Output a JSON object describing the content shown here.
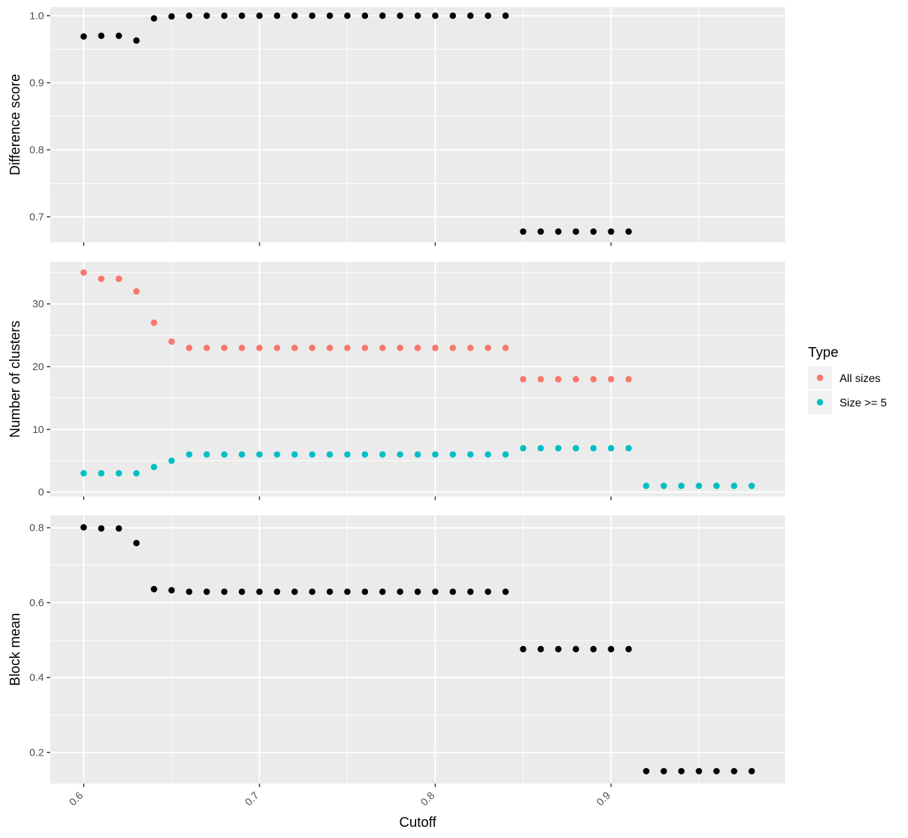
{
  "chart_data": {
    "type": "scatter",
    "xlabel": "Cutoff",
    "xlim": [
      0.581,
      0.999
    ],
    "xticks": [
      0.6,
      0.7,
      0.8,
      0.9
    ],
    "x_tick_labels": [
      "0.6",
      "0.7",
      "0.8",
      "0.9"
    ],
    "panels": [
      {
        "ylabel": "Difference score",
        "ylim": [
          0.662,
          1.013
        ],
        "yticks": [
          0.7,
          0.8,
          0.9,
          1.0
        ],
        "y_tick_labels": [
          "0.7",
          "0.8",
          "0.9",
          "1.0"
        ],
        "y_minor": [
          0.75,
          0.85,
          0.95
        ],
        "series": [
          {
            "color": "#000000",
            "x": [
              0.6,
              0.61,
              0.62,
              0.63,
              0.64,
              0.65,
              0.66,
              0.67,
              0.68,
              0.69,
              0.7,
              0.71,
              0.72,
              0.73,
              0.74,
              0.75,
              0.76,
              0.77,
              0.78,
              0.79,
              0.8,
              0.81,
              0.82,
              0.83,
              0.84,
              0.85,
              0.86,
              0.87,
              0.88,
              0.89,
              0.9,
              0.91
            ],
            "y": [
              0.969,
              0.97,
              0.97,
              0.963,
              0.996,
              0.999,
              1.0,
              1.0,
              1.0,
              1.0,
              1.0,
              1.0,
              1.0,
              1.0,
              1.0,
              1.0,
              1.0,
              1.0,
              1.0,
              1.0,
              1.0,
              1.0,
              1.0,
              1.0,
              1.0,
              0.678,
              0.678,
              0.678,
              0.678,
              0.678,
              0.678,
              0.678
            ]
          }
        ]
      },
      {
        "ylabel": "Number of clusters",
        "ylim": [
          -0.7,
          36.7
        ],
        "yticks": [
          0,
          10,
          20,
          30
        ],
        "y_tick_labels": [
          "0",
          "10",
          "20",
          "30"
        ],
        "y_minor": [
          5,
          15,
          25,
          35
        ],
        "series": [
          {
            "name": "All sizes",
            "color": "#F8766D",
            "x": [
              0.6,
              0.61,
              0.62,
              0.63,
              0.64,
              0.65,
              0.66,
              0.67,
              0.68,
              0.69,
              0.7,
              0.71,
              0.72,
              0.73,
              0.74,
              0.75,
              0.76,
              0.77,
              0.78,
              0.79,
              0.8,
              0.81,
              0.82,
              0.83,
              0.84,
              0.85,
              0.86,
              0.87,
              0.88,
              0.89,
              0.9,
              0.91
            ],
            "y": [
              35,
              34,
              34,
              32,
              27,
              24,
              23,
              23,
              23,
              23,
              23,
              23,
              23,
              23,
              23,
              23,
              23,
              23,
              23,
              23,
              23,
              23,
              23,
              23,
              23,
              18,
              18,
              18,
              18,
              18,
              18,
              18
            ]
          },
          {
            "name": "Size >= 5",
            "color": "#00BFC4",
            "x": [
              0.6,
              0.61,
              0.62,
              0.63,
              0.64,
              0.65,
              0.66,
              0.67,
              0.68,
              0.69,
              0.7,
              0.71,
              0.72,
              0.73,
              0.74,
              0.75,
              0.76,
              0.77,
              0.78,
              0.79,
              0.8,
              0.81,
              0.82,
              0.83,
              0.84,
              0.85,
              0.86,
              0.87,
              0.88,
              0.89,
              0.9,
              0.91,
              0.92,
              0.93,
              0.94,
              0.95,
              0.96,
              0.97,
              0.98
            ],
            "y": [
              3,
              3,
              3,
              3,
              4,
              5,
              6,
              6,
              6,
              6,
              6,
              6,
              6,
              6,
              6,
              6,
              6,
              6,
              6,
              6,
              6,
              6,
              6,
              6,
              6,
              7,
              7,
              7,
              7,
              7,
              7,
              7,
              1,
              1,
              1,
              1,
              1,
              1,
              1
            ]
          }
        ]
      },
      {
        "ylabel": "Block mean",
        "ylim": [
          0.117,
          0.833
        ],
        "yticks": [
          0.2,
          0.4,
          0.6,
          0.8
        ],
        "y_tick_labels": [
          "0.2",
          "0.4",
          "0.6",
          "0.8"
        ],
        "y_minor": [
          0.3,
          0.5,
          0.7
        ],
        "series": [
          {
            "color": "#000000",
            "x": [
              0.6,
              0.61,
              0.62,
              0.63,
              0.64,
              0.65,
              0.66,
              0.67,
              0.68,
              0.69,
              0.7,
              0.71,
              0.72,
              0.73,
              0.74,
              0.75,
              0.76,
              0.77,
              0.78,
              0.79,
              0.8,
              0.81,
              0.82,
              0.83,
              0.84,
              0.85,
              0.86,
              0.87,
              0.88,
              0.89,
              0.9,
              0.91,
              0.92,
              0.93,
              0.94,
              0.95,
              0.96,
              0.97,
              0.98
            ],
            "y": [
              0.801,
              0.798,
              0.798,
              0.759,
              0.636,
              0.633,
              0.629,
              0.629,
              0.629,
              0.629,
              0.629,
              0.629,
              0.629,
              0.629,
              0.629,
              0.629,
              0.629,
              0.629,
              0.629,
              0.629,
              0.629,
              0.629,
              0.629,
              0.629,
              0.629,
              0.476,
              0.476,
              0.476,
              0.476,
              0.476,
              0.476,
              0.476,
              0.15,
              0.15,
              0.15,
              0.15,
              0.15,
              0.15,
              0.15
            ]
          }
        ]
      }
    ],
    "legend": {
      "title": "Type",
      "position": "right",
      "entries": [
        {
          "label": "All sizes",
          "color": "#F8766D"
        },
        {
          "label": "Size >= 5",
          "color": "#00BFC4"
        }
      ]
    },
    "grid": true,
    "panel_background": "#EBEBEB",
    "grid_color": "#FFFFFF"
  }
}
